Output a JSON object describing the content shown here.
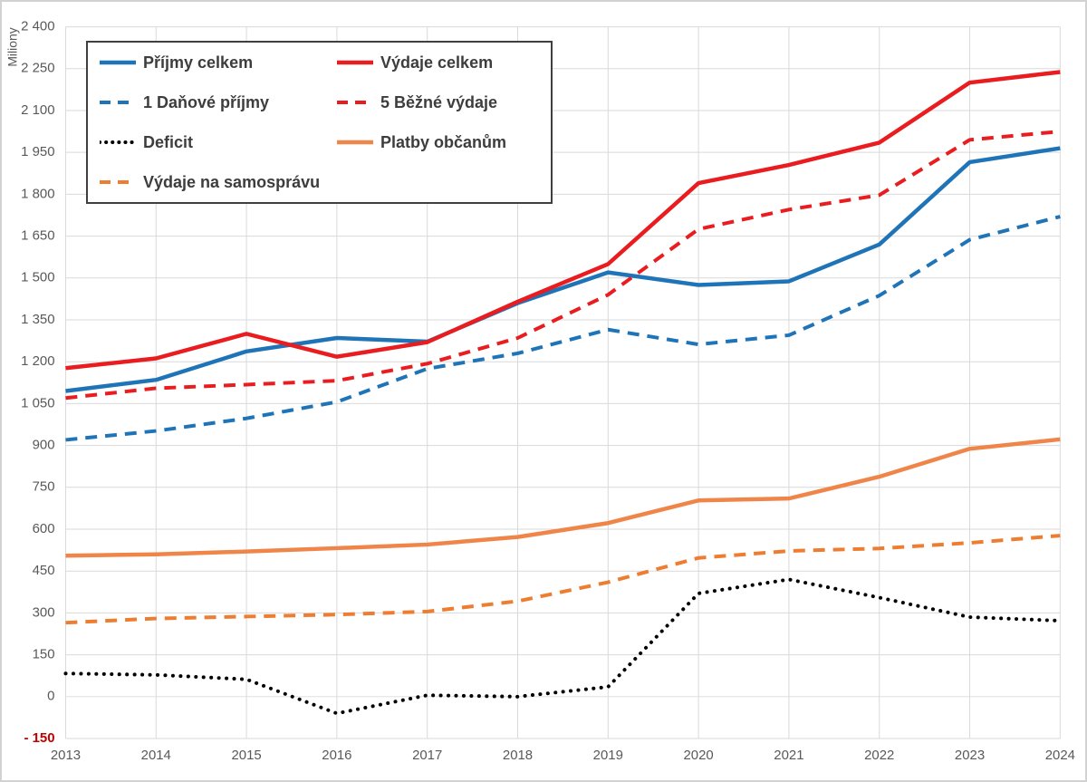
{
  "chart_data": {
    "type": "line",
    "title": "",
    "ylabel": "Miliony",
    "xlabel": "",
    "grid": true,
    "legend_position": "top-left",
    "ylim": [
      -150,
      2400
    ],
    "ytick_step": 150,
    "x": [
      2013,
      2014,
      2015,
      2016,
      2017,
      2018,
      2019,
      2020,
      2021,
      2022,
      2023,
      2024
    ],
    "series": [
      {
        "name": "Příjmy celkem",
        "slug": "prijmy-celkem",
        "color": "#1f74b8",
        "style": "solid",
        "values": [
          1095,
          1135,
          1237,
          1285,
          1272,
          1410,
          1520,
          1475,
          1488,
          1620,
          1915,
          1965
        ]
      },
      {
        "name": "Výdaje celkem",
        "slug": "vydaje-celkem",
        "color": "#e91c1f",
        "style": "solid",
        "values": [
          1177,
          1212,
          1300,
          1218,
          1270,
          1415,
          1550,
          1840,
          1905,
          1985,
          2200,
          2238
        ]
      },
      {
        "name": "1 Daňové příjmy",
        "slug": "danove-prijmy",
        "color": "#1f74b8",
        "style": "dashed",
        "values": [
          920,
          952,
          997,
          1056,
          1175,
          1230,
          1315,
          1262,
          1295,
          1437,
          1637,
          1720
        ]
      },
      {
        "name": "5 Běžné výdaje",
        "slug": "bezne-vydaje",
        "color": "#e91c1f",
        "style": "dashed",
        "values": [
          1070,
          1105,
          1118,
          1132,
          1193,
          1285,
          1440,
          1675,
          1745,
          1797,
          1995,
          2025
        ]
      },
      {
        "name": "Deficit",
        "slug": "deficit",
        "color": "#000000",
        "style": "dotted",
        "values": [
          83,
          78,
          62,
          -60,
          5,
          0,
          35,
          370,
          420,
          355,
          285,
          272
        ]
      },
      {
        "name": "Platby občanům",
        "slug": "platby-obcanum",
        "color": "#f0854a",
        "style": "solid",
        "values": [
          505,
          510,
          520,
          532,
          545,
          572,
          622,
          703,
          710,
          788,
          888,
          922
        ]
      },
      {
        "name": "Výdaje na samosprávu",
        "slug": "vydaje-na-samospravu",
        "color": "#ed7d31",
        "style": "dashed",
        "values": [
          265,
          280,
          287,
          294,
          305,
          342,
          410,
          497,
          522,
          531,
          551,
          577
        ]
      }
    ],
    "legend_columns": [
      [
        0,
        2,
        4,
        6
      ],
      [
        1,
        3,
        5
      ]
    ]
  },
  "colors": {
    "gridline": "#d9d9d9",
    "tick_label": "#595959",
    "negative_tick_label": "#c00000",
    "axis_title": "#595959",
    "legend_border": "#3f3f3f",
    "outer_border": "#d2d2d2"
  }
}
